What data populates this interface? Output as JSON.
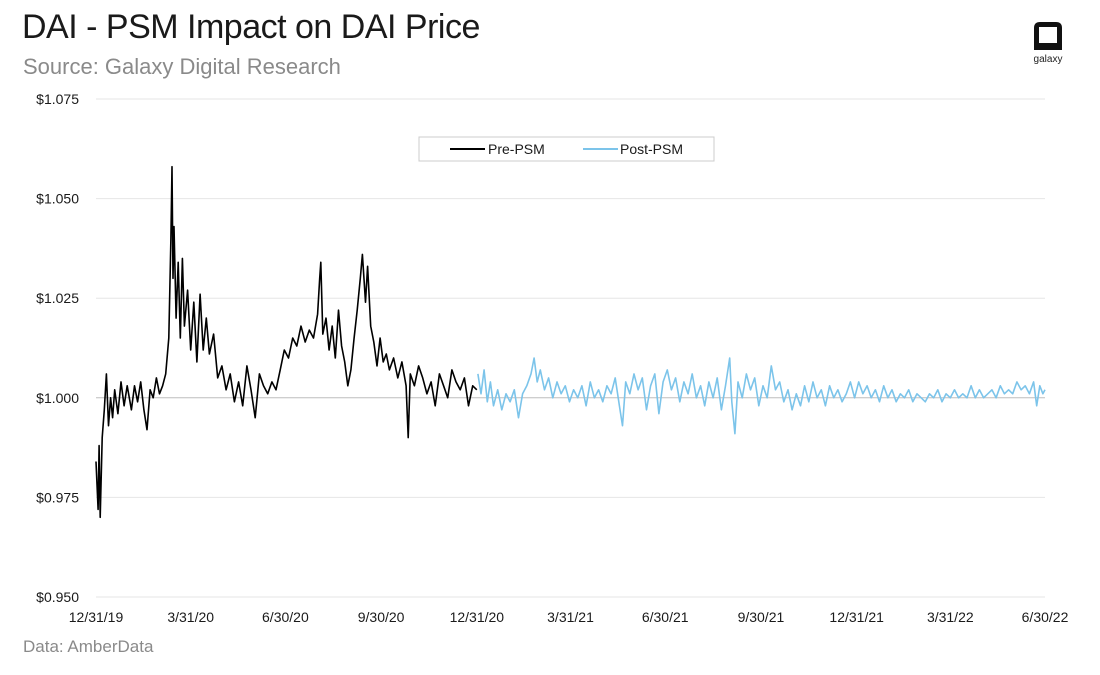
{
  "header": {
    "title": "DAI - PSM Impact on DAI Price",
    "subtitle": "Source: Galaxy Digital Research"
  },
  "logo": {
    "text": "galaxy",
    "icon": "galaxy-logo-icon"
  },
  "footer": {
    "note": "Data: AmberData"
  },
  "chart_data": {
    "type": "line",
    "title": "DAI - PSM Impact on DAI Price",
    "xlabel": "",
    "ylabel": "",
    "x_range": [
      "2019-12-31",
      "2022-06-30"
    ],
    "ylim": [
      0.95,
      1.075
    ],
    "y_ticks": [
      {
        "value": 0.95,
        "label": "$0.950"
      },
      {
        "value": 0.975,
        "label": "$0.975"
      },
      {
        "value": 1.0,
        "label": "$1.000"
      },
      {
        "value": 1.025,
        "label": "$1.025"
      },
      {
        "value": 1.05,
        "label": "$1.050"
      },
      {
        "value": 1.075,
        "label": "$1.075"
      }
    ],
    "x_ticks": [
      {
        "date": "2019-12-31",
        "label": "12/31/19"
      },
      {
        "date": "2020-03-31",
        "label": "3/31/20"
      },
      {
        "date": "2020-06-30",
        "label": "6/30/20"
      },
      {
        "date": "2020-09-30",
        "label": "9/30/20"
      },
      {
        "date": "2020-12-31",
        "label": "12/31/20"
      },
      {
        "date": "2021-03-31",
        "label": "3/31/21"
      },
      {
        "date": "2021-06-30",
        "label": "6/30/21"
      },
      {
        "date": "2021-09-30",
        "label": "9/30/21"
      },
      {
        "date": "2021-12-31",
        "label": "12/31/21"
      },
      {
        "date": "2022-03-31",
        "label": "3/31/22"
      },
      {
        "date": "2022-06-30",
        "label": "6/30/22"
      }
    ],
    "grid": true,
    "legend": "top-center",
    "series": [
      {
        "name": "Pre-PSM",
        "color": "#000000",
        "points": [
          [
            "2019-12-31",
            0.984
          ],
          [
            "2020-01-02",
            0.972
          ],
          [
            "2020-01-03",
            0.988
          ],
          [
            "2020-01-04",
            0.97
          ],
          [
            "2020-01-06",
            0.99
          ],
          [
            "2020-01-08",
            0.997
          ],
          [
            "2020-01-10",
            1.006
          ],
          [
            "2020-01-12",
            0.993
          ],
          [
            "2020-01-14",
            1.0
          ],
          [
            "2020-01-16",
            0.995
          ],
          [
            "2020-01-18",
            1.002
          ],
          [
            "2020-01-21",
            0.996
          ],
          [
            "2020-01-24",
            1.004
          ],
          [
            "2020-01-27",
            0.998
          ],
          [
            "2020-01-30",
            1.003
          ],
          [
            "2020-02-03",
            0.997
          ],
          [
            "2020-02-06",
            1.003
          ],
          [
            "2020-02-09",
            0.999
          ],
          [
            "2020-02-12",
            1.004
          ],
          [
            "2020-02-15",
            0.997
          ],
          [
            "2020-02-18",
            0.992
          ],
          [
            "2020-02-21",
            1.002
          ],
          [
            "2020-02-24",
            1.0
          ],
          [
            "2020-02-27",
            1.005
          ],
          [
            "2020-03-01",
            1.001
          ],
          [
            "2020-03-04",
            1.003
          ],
          [
            "2020-03-07",
            1.006
          ],
          [
            "2020-03-10",
            1.015
          ],
          [
            "2020-03-12",
            1.04
          ],
          [
            "2020-03-13",
            1.058
          ],
          [
            "2020-03-14",
            1.03
          ],
          [
            "2020-03-15",
            1.043
          ],
          [
            "2020-03-17",
            1.02
          ],
          [
            "2020-03-19",
            1.034
          ],
          [
            "2020-03-21",
            1.015
          ],
          [
            "2020-03-23",
            1.035
          ],
          [
            "2020-03-25",
            1.018
          ],
          [
            "2020-03-28",
            1.027
          ],
          [
            "2020-03-31",
            1.012
          ],
          [
            "2020-04-03",
            1.024
          ],
          [
            "2020-04-06",
            1.009
          ],
          [
            "2020-04-09",
            1.026
          ],
          [
            "2020-04-12",
            1.012
          ],
          [
            "2020-04-15",
            1.02
          ],
          [
            "2020-04-18",
            1.011
          ],
          [
            "2020-04-22",
            1.016
          ],
          [
            "2020-04-26",
            1.005
          ],
          [
            "2020-04-30",
            1.008
          ],
          [
            "2020-05-04",
            1.002
          ],
          [
            "2020-05-08",
            1.006
          ],
          [
            "2020-05-12",
            0.999
          ],
          [
            "2020-05-16",
            1.004
          ],
          [
            "2020-05-20",
            0.998
          ],
          [
            "2020-05-24",
            1.008
          ],
          [
            "2020-05-28",
            1.002
          ],
          [
            "2020-06-01",
            0.995
          ],
          [
            "2020-06-05",
            1.006
          ],
          [
            "2020-06-09",
            1.003
          ],
          [
            "2020-06-13",
            1.001
          ],
          [
            "2020-06-17",
            1.004
          ],
          [
            "2020-06-21",
            1.002
          ],
          [
            "2020-06-25",
            1.007
          ],
          [
            "2020-06-29",
            1.012
          ],
          [
            "2020-07-03",
            1.01
          ],
          [
            "2020-07-07",
            1.015
          ],
          [
            "2020-07-11",
            1.013
          ],
          [
            "2020-07-15",
            1.018
          ],
          [
            "2020-07-19",
            1.014
          ],
          [
            "2020-07-23",
            1.017
          ],
          [
            "2020-07-27",
            1.015
          ],
          [
            "2020-07-31",
            1.021
          ],
          [
            "2020-08-02",
            1.03
          ],
          [
            "2020-08-03",
            1.034
          ],
          [
            "2020-08-05",
            1.016
          ],
          [
            "2020-08-08",
            1.02
          ],
          [
            "2020-08-11",
            1.012
          ],
          [
            "2020-08-14",
            1.018
          ],
          [
            "2020-08-17",
            1.01
          ],
          [
            "2020-08-20",
            1.022
          ],
          [
            "2020-08-23",
            1.013
          ],
          [
            "2020-08-26",
            1.009
          ],
          [
            "2020-08-29",
            1.003
          ],
          [
            "2020-09-01",
            1.007
          ],
          [
            "2020-09-04",
            1.015
          ],
          [
            "2020-09-07",
            1.022
          ],
          [
            "2020-09-10",
            1.03
          ],
          [
            "2020-09-12",
            1.036
          ],
          [
            "2020-09-15",
            1.024
          ],
          [
            "2020-09-17",
            1.033
          ],
          [
            "2020-09-20",
            1.018
          ],
          [
            "2020-09-23",
            1.014
          ],
          [
            "2020-09-26",
            1.008
          ],
          [
            "2020-09-29",
            1.015
          ],
          [
            "2020-10-02",
            1.009
          ],
          [
            "2020-10-05",
            1.011
          ],
          [
            "2020-10-08",
            1.007
          ],
          [
            "2020-10-12",
            1.01
          ],
          [
            "2020-10-16",
            1.005
          ],
          [
            "2020-10-20",
            1.009
          ],
          [
            "2020-10-24",
            1.003
          ],
          [
            "2020-10-26",
            0.99
          ],
          [
            "2020-10-28",
            1.006
          ],
          [
            "2020-11-01",
            1.003
          ],
          [
            "2020-11-05",
            1.008
          ],
          [
            "2020-11-09",
            1.005
          ],
          [
            "2020-11-13",
            1.001
          ],
          [
            "2020-11-17",
            1.004
          ],
          [
            "2020-11-21",
            0.998
          ],
          [
            "2020-11-25",
            1.006
          ],
          [
            "2020-11-29",
            1.003
          ],
          [
            "2020-12-03",
            1.0
          ],
          [
            "2020-12-07",
            1.007
          ],
          [
            "2020-12-11",
            1.004
          ],
          [
            "2020-12-15",
            1.002
          ],
          [
            "2020-12-19",
            1.005
          ],
          [
            "2020-12-23",
            0.998
          ],
          [
            "2020-12-27",
            1.003
          ],
          [
            "2020-12-31",
            1.002
          ]
        ]
      },
      {
        "name": "Post-PSM",
        "color": "#7cc4ea",
        "points": [
          [
            "2021-01-01",
            1.006
          ],
          [
            "2021-01-04",
            1.001
          ],
          [
            "2021-01-07",
            1.007
          ],
          [
            "2021-01-10",
            0.999
          ],
          [
            "2021-01-13",
            1.004
          ],
          [
            "2021-01-16",
            0.998
          ],
          [
            "2021-01-20",
            1.002
          ],
          [
            "2021-01-24",
            0.997
          ],
          [
            "2021-01-28",
            1.001
          ],
          [
            "2021-02-01",
            0.999
          ],
          [
            "2021-02-05",
            1.002
          ],
          [
            "2021-02-09",
            0.995
          ],
          [
            "2021-02-13",
            1.001
          ],
          [
            "2021-02-17",
            1.003
          ],
          [
            "2021-02-21",
            1.006
          ],
          [
            "2021-02-24",
            1.01
          ],
          [
            "2021-02-27",
            1.004
          ],
          [
            "2021-03-02",
            1.007
          ],
          [
            "2021-03-06",
            1.002
          ],
          [
            "2021-03-10",
            1.005
          ],
          [
            "2021-03-14",
            1.0
          ],
          [
            "2021-03-18",
            1.004
          ],
          [
            "2021-03-22",
            1.001
          ],
          [
            "2021-03-26",
            1.003
          ],
          [
            "2021-03-30",
            0.999
          ],
          [
            "2021-04-03",
            1.002
          ],
          [
            "2021-04-07",
            1.0
          ],
          [
            "2021-04-11",
            1.003
          ],
          [
            "2021-04-15",
            0.998
          ],
          [
            "2021-04-19",
            1.004
          ],
          [
            "2021-04-23",
            1.0
          ],
          [
            "2021-04-27",
            1.002
          ],
          [
            "2021-05-01",
            0.999
          ],
          [
            "2021-05-05",
            1.003
          ],
          [
            "2021-05-09",
            1.001
          ],
          [
            "2021-05-13",
            1.005
          ],
          [
            "2021-05-17",
            0.998
          ],
          [
            "2021-05-20",
            0.993
          ],
          [
            "2021-05-23",
            1.004
          ],
          [
            "2021-05-27",
            1.001
          ],
          [
            "2021-05-31",
            1.006
          ],
          [
            "2021-06-04",
            1.002
          ],
          [
            "2021-06-08",
            1.005
          ],
          [
            "2021-06-12",
            0.997
          ],
          [
            "2021-06-16",
            1.003
          ],
          [
            "2021-06-20",
            1.006
          ],
          [
            "2021-06-24",
            0.996
          ],
          [
            "2021-06-28",
            1.004
          ],
          [
            "2021-07-02",
            1.007
          ],
          [
            "2021-07-06",
            1.002
          ],
          [
            "2021-07-10",
            1.005
          ],
          [
            "2021-07-14",
            0.999
          ],
          [
            "2021-07-18",
            1.004
          ],
          [
            "2021-07-22",
            1.001
          ],
          [
            "2021-07-26",
            1.006
          ],
          [
            "2021-07-30",
            1.0
          ],
          [
            "2021-08-03",
            1.003
          ],
          [
            "2021-08-07",
            0.998
          ],
          [
            "2021-08-11",
            1.004
          ],
          [
            "2021-08-15",
            1.0
          ],
          [
            "2021-08-19",
            1.005
          ],
          [
            "2021-08-23",
            0.997
          ],
          [
            "2021-08-27",
            1.003
          ],
          [
            "2021-08-31",
            1.01
          ],
          [
            "2021-09-02",
            0.999
          ],
          [
            "2021-09-05",
            0.991
          ],
          [
            "2021-09-08",
            1.004
          ],
          [
            "2021-09-12",
            1.0
          ],
          [
            "2021-09-16",
            1.006
          ],
          [
            "2021-09-20",
            1.002
          ],
          [
            "2021-09-24",
            1.005
          ],
          [
            "2021-09-28",
            0.998
          ],
          [
            "2021-10-02",
            1.003
          ],
          [
            "2021-10-06",
            1.0
          ],
          [
            "2021-10-10",
            1.008
          ],
          [
            "2021-10-14",
            1.002
          ],
          [
            "2021-10-18",
            1.004
          ],
          [
            "2021-10-22",
            0.999
          ],
          [
            "2021-10-26",
            1.002
          ],
          [
            "2021-10-30",
            0.997
          ],
          [
            "2021-11-03",
            1.001
          ],
          [
            "2021-11-07",
            0.998
          ],
          [
            "2021-11-11",
            1.003
          ],
          [
            "2021-11-15",
            0.999
          ],
          [
            "2021-11-19",
            1.004
          ],
          [
            "2021-11-23",
            1.0
          ],
          [
            "2021-11-27",
            1.002
          ],
          [
            "2021-12-01",
            0.998
          ],
          [
            "2021-12-05",
            1.003
          ],
          [
            "2021-12-09",
            1.0
          ],
          [
            "2021-12-13",
            1.002
          ],
          [
            "2021-12-17",
            0.999
          ],
          [
            "2021-12-21",
            1.001
          ],
          [
            "2021-12-25",
            1.004
          ],
          [
            "2021-12-29",
            1.0
          ],
          [
            "2022-01-02",
            1.004
          ],
          [
            "2022-01-06",
            1.001
          ],
          [
            "2022-01-10",
            1.003
          ],
          [
            "2022-01-14",
            1.0
          ],
          [
            "2022-01-18",
            1.002
          ],
          [
            "2022-01-22",
            0.999
          ],
          [
            "2022-01-26",
            1.003
          ],
          [
            "2022-01-30",
            1.0
          ],
          [
            "2022-02-03",
            1.002
          ],
          [
            "2022-02-07",
            0.999
          ],
          [
            "2022-02-11",
            1.001
          ],
          [
            "2022-02-15",
            1.0
          ],
          [
            "2022-02-19",
            1.002
          ],
          [
            "2022-02-23",
            0.999
          ],
          [
            "2022-02-27",
            1.001
          ],
          [
            "2022-03-03",
            1.0
          ],
          [
            "2022-03-07",
            0.999
          ],
          [
            "2022-03-11",
            1.001
          ],
          [
            "2022-03-15",
            1.0
          ],
          [
            "2022-03-19",
            1.002
          ],
          [
            "2022-03-23",
            0.999
          ],
          [
            "2022-03-27",
            1.001
          ],
          [
            "2022-03-31",
            1.0
          ],
          [
            "2022-04-04",
            1.002
          ],
          [
            "2022-04-08",
            1.0
          ],
          [
            "2022-04-12",
            1.001
          ],
          [
            "2022-04-16",
            1.0
          ],
          [
            "2022-04-20",
            1.003
          ],
          [
            "2022-04-24",
            1.0
          ],
          [
            "2022-04-28",
            1.002
          ],
          [
            "2022-05-02",
            1.0
          ],
          [
            "2022-05-06",
            1.001
          ],
          [
            "2022-05-10",
            1.002
          ],
          [
            "2022-05-14",
            1.0
          ],
          [
            "2022-05-18",
            1.003
          ],
          [
            "2022-05-22",
            1.001
          ],
          [
            "2022-05-26",
            1.002
          ],
          [
            "2022-05-30",
            1.001
          ],
          [
            "2022-06-03",
            1.004
          ],
          [
            "2022-06-07",
            1.002
          ],
          [
            "2022-06-11",
            1.003
          ],
          [
            "2022-06-15",
            1.001
          ],
          [
            "2022-06-19",
            1.004
          ],
          [
            "2022-06-22",
            0.998
          ],
          [
            "2022-06-25",
            1.003
          ],
          [
            "2022-06-28",
            1.001
          ],
          [
            "2022-06-30",
            1.002
          ]
        ]
      }
    ]
  }
}
